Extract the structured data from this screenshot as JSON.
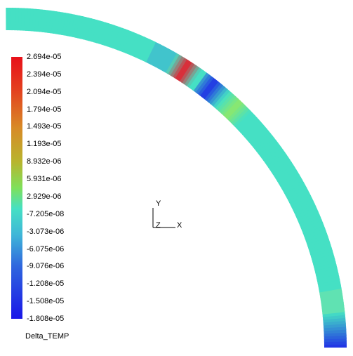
{
  "legend": {
    "title": "Delta_TEMP",
    "ticks": [
      "2.694e-05",
      "2.394e-05",
      "2.094e-05",
      "1.794e-05",
      "1.493e-05",
      "1.193e-05",
      "8.932e-06",
      "5.931e-06",
      "2.929e-06",
      "-7.205e-08",
      "-3.073e-06",
      "-6.075e-06",
      "-9.076e-06",
      "-1.208e-05",
      "-1.508e-05",
      "-1.808e-05"
    ],
    "colors": [
      "#e8101a",
      "#e63a1e",
      "#e25b24",
      "#dc7c26",
      "#cf9a2a",
      "#b7b22e",
      "#9fca36",
      "#7fe05a",
      "#5be88e",
      "#45e0c4",
      "#40c2d6",
      "#3a8ed8",
      "#2f5ce0",
      "#2438e4",
      "#1a1ee8",
      "#1a1ae8"
    ]
  },
  "axes": {
    "x": "X",
    "y": "Y",
    "z": "Z"
  },
  "ring": {
    "base_color": "#45e0c4",
    "hot_color": "#e81c2c",
    "cold_color": "#2030e6",
    "green_color": "#8ee86a"
  }
}
